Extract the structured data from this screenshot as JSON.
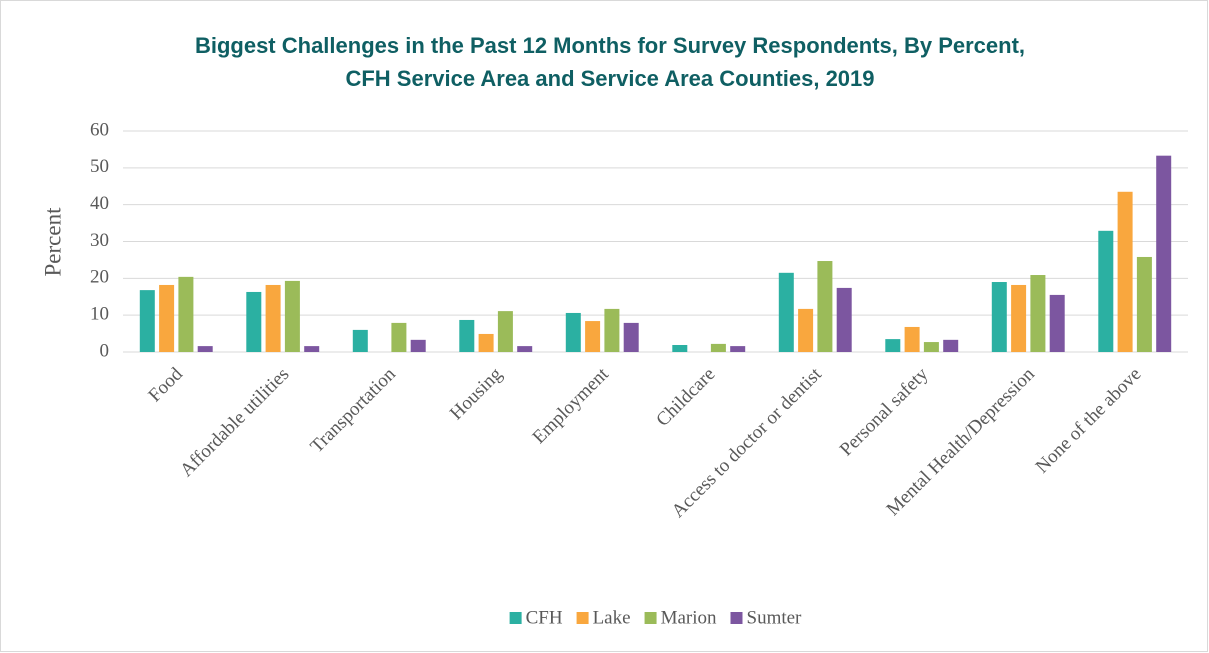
{
  "chart_data": {
    "type": "bar",
    "title": [
      "Biggest Challenges in the Past 12 Months for Survey Respondents, By Percent,",
      "CFH Service Area and Service Area Counties, 2019"
    ],
    "y_label": "Percent",
    "categories": [
      "Food",
      "Affordable utilities",
      "Transportation",
      "Housing",
      "Employment",
      "Childcare",
      "Access to doctor or dentist",
      "Personal safety",
      "Mental Health/Depression",
      "None of the above"
    ],
    "series": [
      {
        "name": "CFH",
        "color": "#2bb0a2",
        "values": [
          16.8,
          16.3,
          6.0,
          8.7,
          10.6,
          1.9,
          21.5,
          3.5,
          19.0,
          32.9
        ]
      },
      {
        "name": "Lake",
        "color": "#f9a73e",
        "values": [
          18.2,
          18.2,
          null,
          4.9,
          8.4,
          null,
          11.7,
          6.8,
          18.2,
          43.5
        ]
      },
      {
        "name": "Marion",
        "color": "#9bbb59",
        "values": [
          20.4,
          19.3,
          7.9,
          11.1,
          11.7,
          2.2,
          24.7,
          2.7,
          20.9,
          25.8
        ]
      },
      {
        "name": "Sumter",
        "color": "#7c56a0",
        "values": [
          1.6,
          1.6,
          3.3,
          1.6,
          7.9,
          1.6,
          17.4,
          3.3,
          15.5,
          53.3
        ]
      }
    ],
    "ylim": [
      0,
      60
    ],
    "yticks": [
      0,
      10,
      20,
      30,
      40,
      50,
      60
    ],
    "grid": true,
    "legend": "bottom"
  }
}
